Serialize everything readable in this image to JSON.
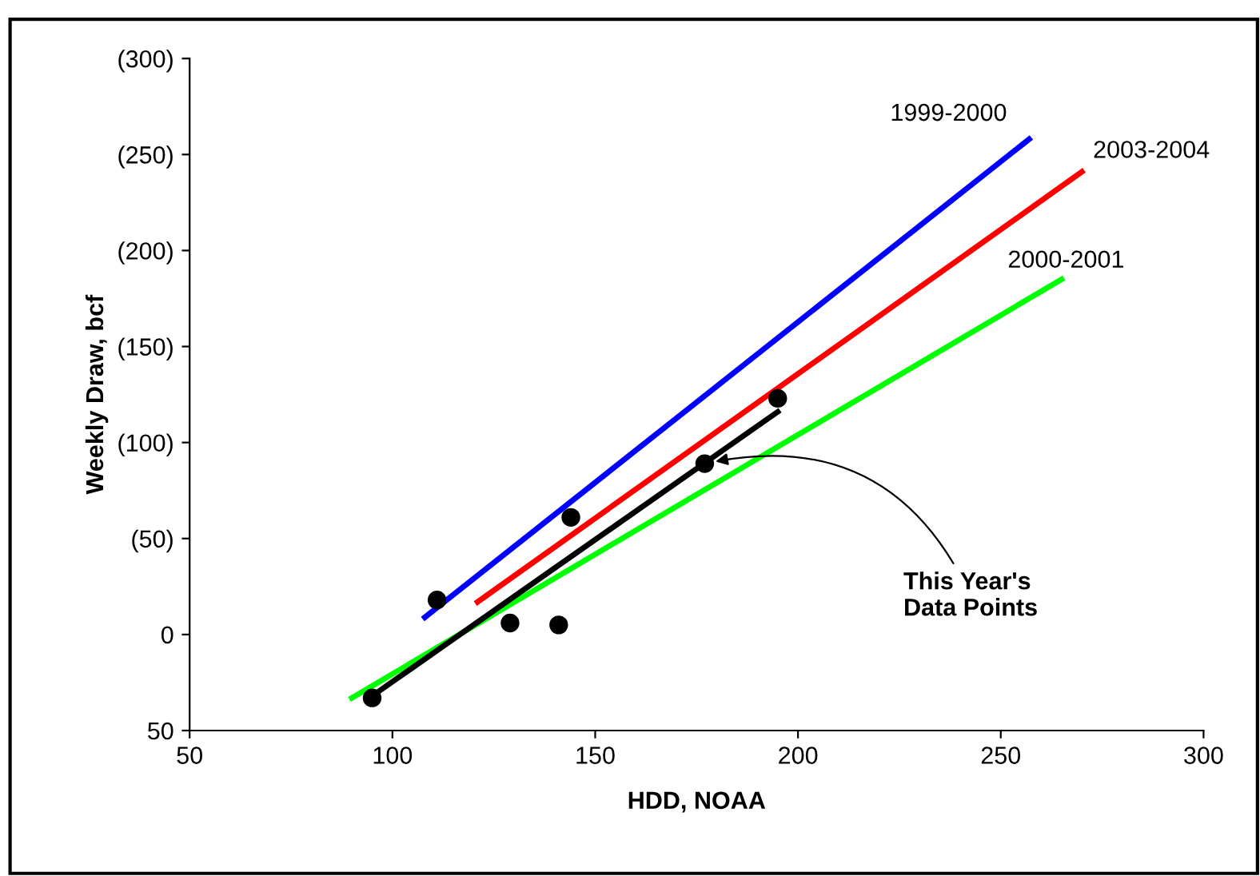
{
  "chart_data": {
    "type": "scatter",
    "xlabel": "HDD, NOAA",
    "ylabel": "Weekly Draw, bcf",
    "xlim": [
      50,
      300
    ],
    "xticks": [
      50,
      100,
      150,
      200,
      250,
      300
    ],
    "ylim": [
      50,
      -300
    ],
    "yticks": [
      {
        "value": 50,
        "label": "50"
      },
      {
        "value": 0,
        "label": "0"
      },
      {
        "value": -50,
        "label": "(50)"
      },
      {
        "value": -100,
        "label": "(100)"
      },
      {
        "value": -150,
        "label": "(150)"
      },
      {
        "value": -200,
        "label": "(200)"
      },
      {
        "value": -250,
        "label": "(250)"
      },
      {
        "value": -300,
        "label": "(300)"
      }
    ],
    "grid": false,
    "legend": false,
    "series": [
      {
        "name": "1999-2000",
        "type": "line",
        "color": "#0000ff",
        "x": [
          108,
          257
        ],
        "values": [
          -9,
          -258
        ]
      },
      {
        "name": "2003-2004",
        "type": "line",
        "color": "#ff0000",
        "x": [
          121,
          270
        ],
        "values": [
          -17,
          -241
        ]
      },
      {
        "name": "2000-2001",
        "type": "line",
        "color": "#00ff00",
        "x": [
          90,
          265
        ],
        "values": [
          33,
          -185
        ]
      },
      {
        "type": "line",
        "color": "#000000",
        "x": [
          95,
          195
        ],
        "values": [
          32,
          -116
        ]
      },
      {
        "color": "#000000",
        "marker": "circle",
        "x": [
          95,
          111,
          129,
          141,
          144,
          177,
          195
        ],
        "values": [
          33,
          -18,
          -6,
          -5,
          -61,
          -89,
          -123
        ]
      }
    ],
    "annotations": [
      {
        "text": "This Year's\nData Points",
        "x": 177,
        "y": -89
      }
    ]
  }
}
